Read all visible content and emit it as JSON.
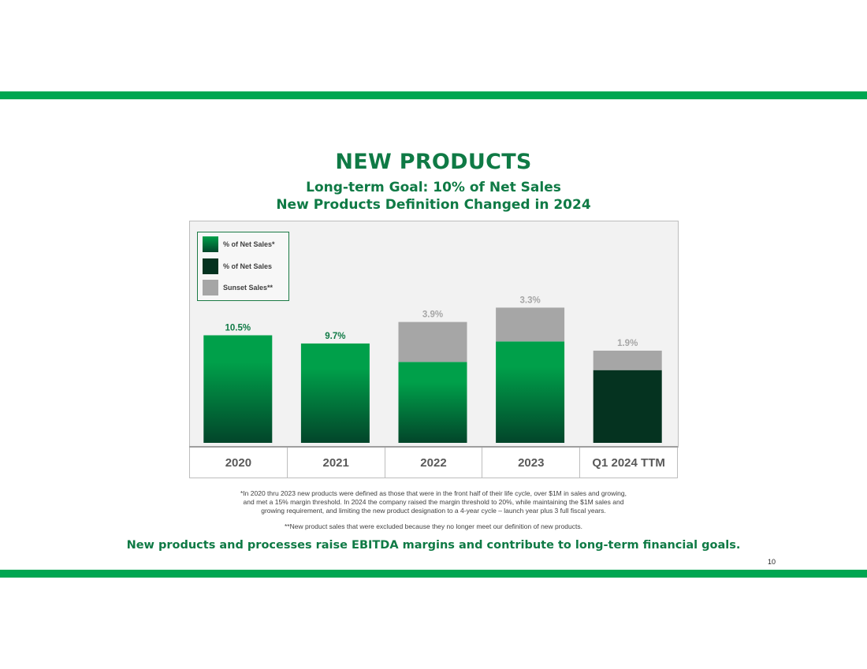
{
  "title": "NEW PRODUCTS",
  "subtitle_lines": [
    "Long-term Goal: 10% of Net Sales",
    "New Products Definition Changed in 2024"
  ],
  "colors": {
    "brand_green": "#00a651",
    "title_green": "#0f7a45",
    "new_products_top": "#00a04a",
    "new_products_bottom": "#02452a",
    "net_sales_dark": "#053320",
    "sunset_gray": "#a6a6a6"
  },
  "chart_data": {
    "type": "bar",
    "stacked": true,
    "categories": [
      "2020",
      "2021",
      "2022",
      "2023",
      "Q1 2024 TTM"
    ],
    "series": [
      {
        "name": "% of Net Sales*",
        "values": [
          10.5,
          9.7,
          7.9,
          9.9,
          null
        ],
        "labels": [
          "10.5%",
          "9.7%",
          "7.9%",
          "9.9%",
          ""
        ]
      },
      {
        "name": "% of Net Sales",
        "values": [
          null,
          null,
          null,
          null,
          7.1
        ],
        "labels": [
          "",
          "",
          "",
          "",
          "7.1%"
        ]
      },
      {
        "name": "Sunset Sales**",
        "values": [
          null,
          null,
          3.9,
          3.3,
          1.9
        ],
        "labels": [
          "",
          "",
          "3.9%",
          "3.3%",
          "1.9%"
        ]
      }
    ],
    "ylim": [
      0,
      20
    ],
    "legend_position": "top-left",
    "grid": false
  },
  "footnotes": {
    "definition": [
      "*In 2020 thru 2023 new products were defined as those that were in the front half of their life cycle, over $1M in sales and growing,",
      "and met a 15% margin threshold.  In 2024 the company raised the margin threshold to 20%, while maintaining the $1M sales and",
      "growing requirement, and limiting the new product designation to a 4-year cycle – launch year plus 3 full fiscal years."
    ],
    "sunset": "**New product sales that were excluded because they no longer meet our definition of new products."
  },
  "takeaway": "New products and processes raise EBITDA margins and contribute to long-term financial goals.",
  "page_number": "10"
}
